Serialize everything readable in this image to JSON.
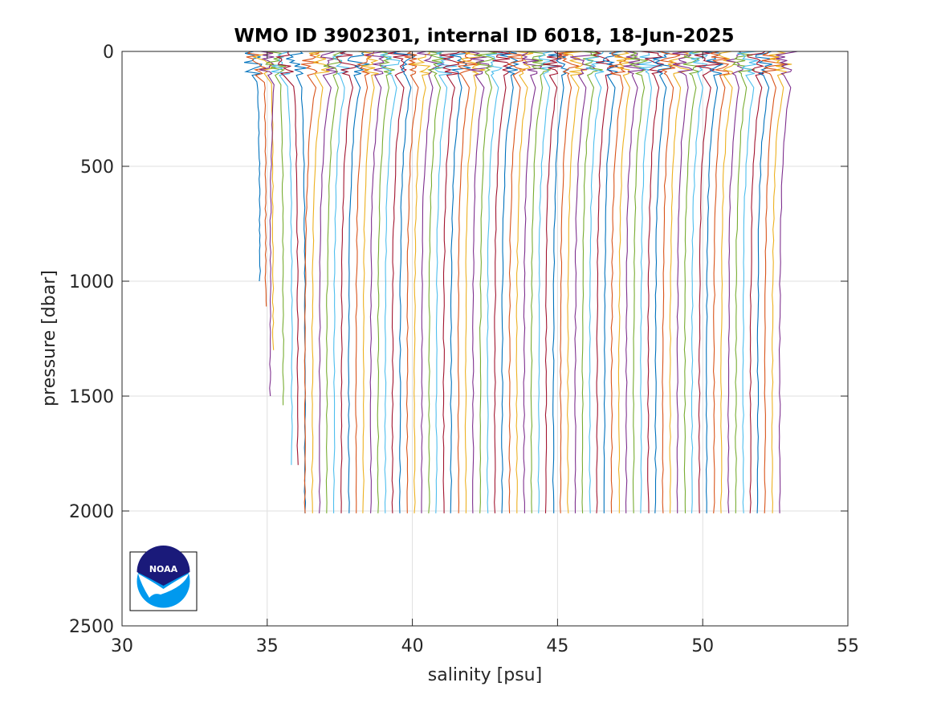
{
  "chart_data": {
    "type": "line",
    "title": "WMO ID 3902301, internal ID 6018, 18-Jun-2025",
    "xlabel": "salinity [psu]",
    "ylabel": "pressure [dbar]",
    "xlim": [
      30,
      55
    ],
    "ylim": [
      0,
      2500
    ],
    "y_reversed": true,
    "grid": true,
    "xticks": [
      "30",
      "35",
      "40",
      "45",
      "50",
      "55"
    ],
    "yticks": [
      "0",
      "500",
      "1000",
      "1500",
      "2000",
      "2500"
    ],
    "series_description": "Stacked salinity profiles, each successive cast offset horizontally by about 0.25 psu",
    "series_colors": [
      "#0072bd",
      "#d95319",
      "#edb120",
      "#7e2f8e",
      "#77ac30",
      "#4dbeee",
      "#a2142f"
    ],
    "profiles": [
      {
        "surface_s": 34.5,
        "deep_s": 34.75,
        "max_p": 1000
      },
      {
        "surface_s": 34.75,
        "deep_s": 34.95,
        "max_p": 1110
      },
      {
        "surface_s": 35.0,
        "deep_s": 35.2,
        "max_p": 1300
      },
      {
        "surface_s": 35.1,
        "deep_s": 35.1,
        "max_p": 1500
      },
      {
        "surface_s": 35.3,
        "deep_s": 35.55,
        "max_p": 1540
      },
      {
        "surface_s": 35.5,
        "deep_s": 35.85,
        "max_p": 1800
      },
      {
        "surface_s": 35.75,
        "deep_s": 36.05,
        "max_p": 1800
      },
      {
        "surface_s": 36.0,
        "deep_s": 36.3,
        "max_p": 2010
      }
    ],
    "first_full_depth_deep_s": 36.3,
    "last_full_depth_deep_s": 52.65,
    "full_depth_count": 66,
    "full_depth_max_p": 2010
  },
  "logo": {
    "name": "NOAA",
    "text": "NOAA",
    "colors": {
      "dark": "#1a1a7a",
      "light": "#0099ee"
    }
  }
}
